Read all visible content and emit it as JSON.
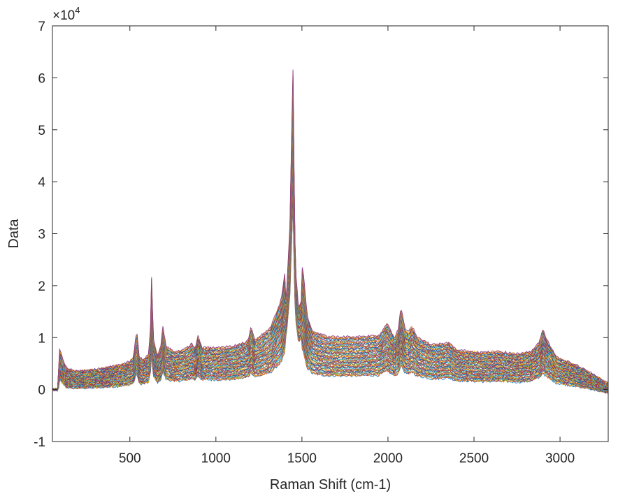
{
  "chart_data": {
    "type": "line",
    "title": "",
    "xlabel": "Raman Shift (cm-1)",
    "ylabel": "Data",
    "xlim": [
      50,
      3280
    ],
    "ylim": [
      -10000,
      70000
    ],
    "xticks": [
      500,
      1000,
      1500,
      2000,
      2500,
      3000
    ],
    "yticks": [
      -1,
      0,
      1,
      2,
      3,
      4,
      5,
      6,
      7
    ],
    "y_multiplier_label": "×10",
    "y_multiplier_exponent": "4",
    "grid": false,
    "legend": "none",
    "series_count_approx": 60,
    "series_colors": [
      "#0072bd",
      "#d95319",
      "#edb120",
      "#7e2f8e",
      "#77ac30",
      "#4dbeee",
      "#a2142f"
    ],
    "profile_x": [
      50,
      80,
      90,
      100,
      130,
      180,
      300,
      400,
      480,
      520,
      540,
      555,
      580,
      610,
      620,
      627,
      635,
      660,
      680,
      692,
      710,
      760,
      820,
      860,
      880,
      895,
      920,
      1000,
      1100,
      1170,
      1190,
      1205,
      1225,
      1260,
      1320,
      1380,
      1410,
      1430,
      1442,
      1447,
      1452,
      1462,
      1480,
      1500,
      1510,
      1530,
      1560,
      1650,
      1800,
      1950,
      1995,
      2040,
      2060,
      2075,
      2100,
      2120,
      2140,
      2170,
      2250,
      2330,
      2350,
      2400,
      2550,
      2650,
      2750,
      2830,
      2880,
      2900,
      2920,
      2980,
      3100,
      3200,
      3280
    ],
    "profile_y_median": [
      -2000,
      -2000,
      4800,
      4000,
      2200,
      1800,
      2000,
      2400,
      2800,
      3500,
      7000,
      3500,
      3300,
      4000,
      7500,
      15000,
      6000,
      3800,
      5000,
      7500,
      5000,
      4300,
      4600,
      5300,
      4700,
      6300,
      4800,
      4800,
      5000,
      5500,
      6000,
      7500,
      5800,
      6300,
      7500,
      11000,
      16000,
      28000,
      46000,
      58000,
      42000,
      21000,
      14000,
      15500,
      14000,
      9000,
      7000,
      6200,
      6200,
      6400,
      8000,
      6000,
      7200,
      10000,
      7200,
      6800,
      7600,
      6200,
      5200,
      5300,
      5500,
      4500,
      4200,
      4300,
      4000,
      4300,
      5500,
      7200,
      6000,
      3600,
      2500,
      1300,
      200
    ],
    "max_envelope_peak": 65000,
    "min_envelope_peak": 38000
  }
}
